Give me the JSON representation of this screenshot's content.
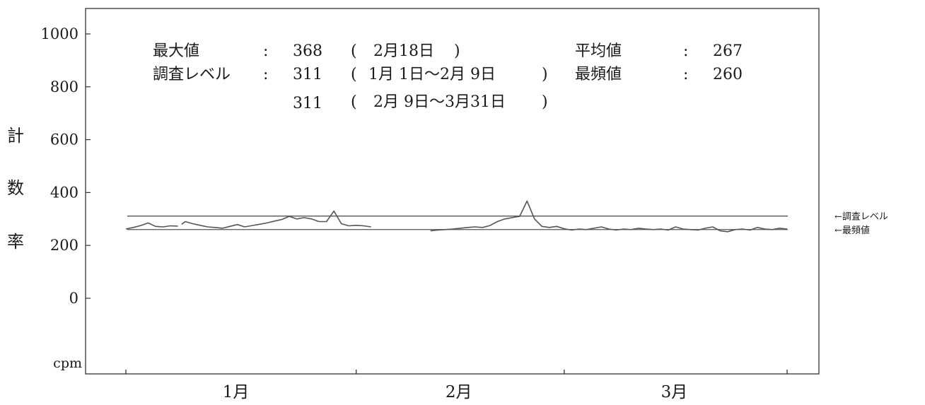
{
  "chart_data": {
    "type": "line",
    "ylabel": "計数率",
    "yunit": "cpm",
    "ylim": [
      -200,
      1000
    ],
    "yticks": [
      1000,
      800,
      600,
      400,
      200,
      0
    ],
    "categories": [
      "1月",
      "2月",
      "3月"
    ],
    "x_range_days": [
      1,
      90
    ],
    "grid": false,
    "stats": {
      "max_label": "最大値",
      "max_value": "368",
      "max_date": "2月18日",
      "level_label": "調査レベル",
      "level_rows": [
        {
          "value": "311",
          "period": "1月 1日〜2月 9日"
        },
        {
          "value": "311",
          "period": "2月 9日〜3月31日"
        }
      ],
      "mean_label": "平均値",
      "mean_value": "267",
      "mode_label": "最頻値",
      "mode_value": "260",
      "separator": ":"
    },
    "reference_lines": [
      {
        "name": "←調査レベル",
        "value": 311
      },
      {
        "name": "←最頻値",
        "value": 260
      }
    ],
    "series": [
      {
        "segments": [
          {
            "points": [
              [
                1,
                262
              ],
              [
                2,
                268
              ],
              [
                3,
                275
              ],
              [
                4,
                285
              ],
              [
                5,
                272
              ],
              [
                6,
                270
              ],
              [
                7,
                274
              ],
              [
                8,
                273
              ]
            ]
          },
          {
            "points": [
              [
                8.5,
                280
              ],
              [
                9,
                290
              ],
              [
                10,
                282
              ],
              [
                11,
                276
              ],
              [
                12,
                270
              ],
              [
                13,
                268
              ],
              [
                14,
                265
              ],
              [
                15,
                272
              ],
              [
                16,
                279
              ],
              [
                17,
                270
              ],
              [
                18,
                275
              ],
              [
                19,
                280
              ],
              [
                20,
                285
              ],
              [
                21,
                292
              ],
              [
                22,
                298
              ],
              [
                23,
                310
              ],
              [
                24,
                300
              ],
              [
                25,
                305
              ],
              [
                26,
                300
              ],
              [
                27,
                290
              ],
              [
                28,
                290
              ],
              [
                29,
                330
              ],
              [
                30,
                282
              ],
              [
                31,
                274
              ],
              [
                32,
                276
              ],
              [
                33,
                274
              ],
              [
                34,
                270
              ]
            ]
          },
          {
            "points": [
              [
                42,
                255
              ],
              [
                43,
                258
              ],
              [
                44,
                260
              ],
              [
                45,
                262
              ],
              [
                46,
                265
              ],
              [
                47,
                268
              ],
              [
                48,
                270
              ],
              [
                49,
                268
              ],
              [
                50,
                275
              ],
              [
                51,
                290
              ],
              [
                52,
                300
              ],
              [
                53,
                305
              ],
              [
                54,
                310
              ],
              [
                55,
                368
              ],
              [
                56,
                300
              ],
              [
                57,
                272
              ],
              [
                58,
                268
              ],
              [
                59,
                272
              ],
              [
                60,
                263
              ],
              [
                61,
                258
              ],
              [
                62,
                262
              ],
              [
                63,
                260
              ],
              [
                64,
                265
              ],
              [
                65,
                270
              ],
              [
                66,
                262
              ],
              [
                67,
                258
              ],
              [
                68,
                262
              ],
              [
                69,
                260
              ],
              [
                70,
                265
              ],
              [
                71,
                262
              ],
              [
                72,
                260
              ],
              [
                73,
                262
              ],
              [
                74,
                258
              ],
              [
                75,
                270
              ],
              [
                76,
                262
              ],
              [
                77,
                260
              ],
              [
                78,
                258
              ],
              [
                79,
                265
              ],
              [
                80,
                270
              ],
              [
                81,
                255
              ],
              [
                82,
                252
              ],
              [
                83,
                260
              ],
              [
                84,
                262
              ],
              [
                85,
                258
              ],
              [
                86,
                268
              ],
              [
                87,
                262
              ],
              [
                88,
                260
              ],
              [
                89,
                265
              ],
              [
                90,
                262
              ]
            ]
          }
        ]
      }
    ]
  }
}
